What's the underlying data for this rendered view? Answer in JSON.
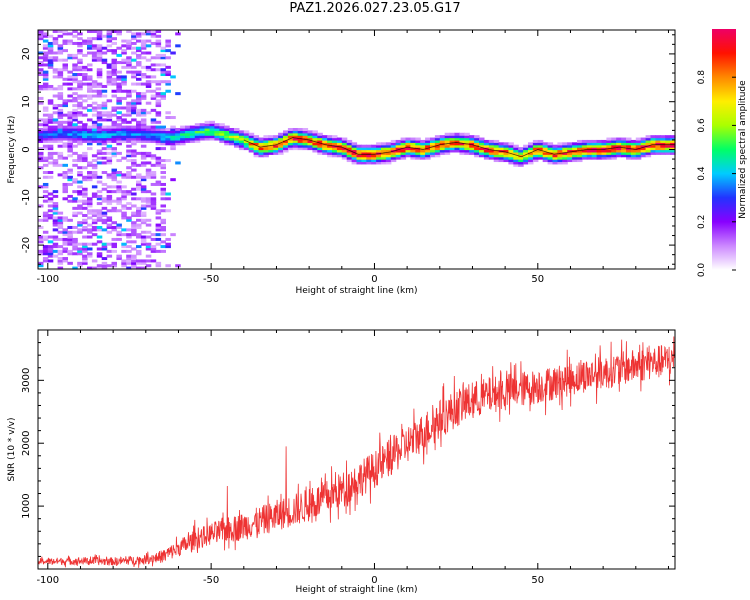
{
  "title": "PAZ1.2026.027.23.05.G17",
  "colors": {
    "line": "#ee3333",
    "axis": "#000000",
    "cmap": [
      "#ffffff",
      "#cc88ff",
      "#8800ff",
      "#2233ff",
      "#00ccff",
      "#00ff66",
      "#aaff00",
      "#ffee00",
      "#ff8800",
      "#ff1100",
      "#ee0066"
    ]
  },
  "chart_data": [
    {
      "type": "heatmap",
      "name": "spectrogram",
      "xlabel": "Height of straight line (km)",
      "ylabel": "Frequency (Hz)",
      "xlim": [
        -103,
        92
      ],
      "ylim": [
        -25,
        25
      ],
      "xticks": [
        -100,
        -50,
        0,
        50
      ],
      "xtick_labels": [
        "-100",
        "-50",
        "0",
        "50"
      ],
      "yticks": [
        -20,
        -10,
        0,
        10,
        20
      ],
      "ytick_labels": [
        "-20",
        "-10",
        "0",
        "10",
        "20"
      ],
      "colorbar": {
        "label": "Normalized spectral amplitude",
        "range": [
          0,
          1
        ],
        "ticks": [
          0.0,
          0.2,
          0.4,
          0.6,
          0.8
        ],
        "tick_labels": [
          "0.0",
          "0.2",
          "0.4",
          "0.6",
          "0.8"
        ]
      },
      "ridge": {
        "x": [
          -103,
          -95,
          -85,
          -75,
          -68,
          -62,
          -55,
          -50,
          -45,
          -40,
          -35,
          -30,
          -25,
          -20,
          -15,
          -10,
          -5,
          0,
          5,
          10,
          15,
          20,
          25,
          30,
          35,
          40,
          45,
          50,
          55,
          60,
          65,
          70,
          75,
          80,
          85,
          92
        ],
        "freq": [
          3,
          3.5,
          3,
          3.5,
          3,
          2.5,
          3.5,
          4,
          3,
          2,
          0.5,
          1,
          2.5,
          2,
          1,
          0.5,
          -1,
          -1,
          -0.5,
          0.5,
          0,
          1,
          1.5,
          1,
          0,
          -0.5,
          -1.5,
          0,
          -1,
          -0.5,
          0,
          0,
          0.5,
          0,
          1,
          1
        ],
        "amplitude": [
          0.3,
          0.35,
          0.4,
          0.35,
          0.35,
          0.45,
          0.5,
          0.55,
          0.6,
          0.65,
          0.9,
          0.85,
          0.95,
          0.9,
          0.9,
          0.85,
          0.95,
          0.95,
          0.9,
          0.95,
          0.9,
          0.9,
          0.85,
          0.9,
          0.9,
          0.9,
          0.7,
          0.9,
          0.85,
          0.95,
          0.95,
          0.95,
          0.95,
          0.95,
          0.95,
          0.95
        ]
      },
      "noise_region": {
        "x_from": -103,
        "x_to": -60,
        "level": 0.3
      }
    },
    {
      "type": "line",
      "name": "snr",
      "xlabel": "Height of straight line (km)",
      "ylabel": "SNR (10 * v/v)",
      "xlim": [
        -103,
        92
      ],
      "ylim": [
        0,
        3800
      ],
      "xticks": [
        -100,
        -50,
        0,
        50
      ],
      "xtick_labels": [
        "-100",
        "-50",
        "0",
        "50"
      ],
      "yticks": [
        1000,
        2000,
        3000
      ],
      "ytick_labels": [
        "1000",
        "2000",
        "3000"
      ],
      "trend": {
        "x": [
          -103,
          -90,
          -80,
          -70,
          -65,
          -60,
          -55,
          -50,
          -45,
          -40,
          -35,
          -30,
          -25,
          -20,
          -15,
          -10,
          -5,
          0,
          5,
          10,
          15,
          20,
          25,
          30,
          35,
          40,
          45,
          50,
          55,
          60,
          65,
          70,
          75,
          80,
          85,
          92
        ],
        "y": [
          120,
          130,
          120,
          150,
          200,
          330,
          460,
          560,
          620,
          680,
          760,
          850,
          930,
          1020,
          1130,
          1260,
          1420,
          1580,
          1780,
          1980,
          2180,
          2380,
          2560,
          2680,
          2760,
          2820,
          2860,
          2900,
          2960,
          3020,
          3080,
          3120,
          3180,
          3230,
          3280,
          3320
        ]
      },
      "noise": {
        "x": [
          -103,
          -70,
          -60,
          -40,
          -20,
          0,
          20,
          40,
          60,
          92
        ],
        "amplitude": [
          60,
          80,
          150,
          250,
          300,
          330,
          350,
          320,
          300,
          300
        ]
      },
      "spikes": [
        {
          "x": -45,
          "y": 1320
        },
        {
          "x": -27,
          "y": 1950
        },
        {
          "x": -55,
          "y": 780
        }
      ]
    }
  ]
}
